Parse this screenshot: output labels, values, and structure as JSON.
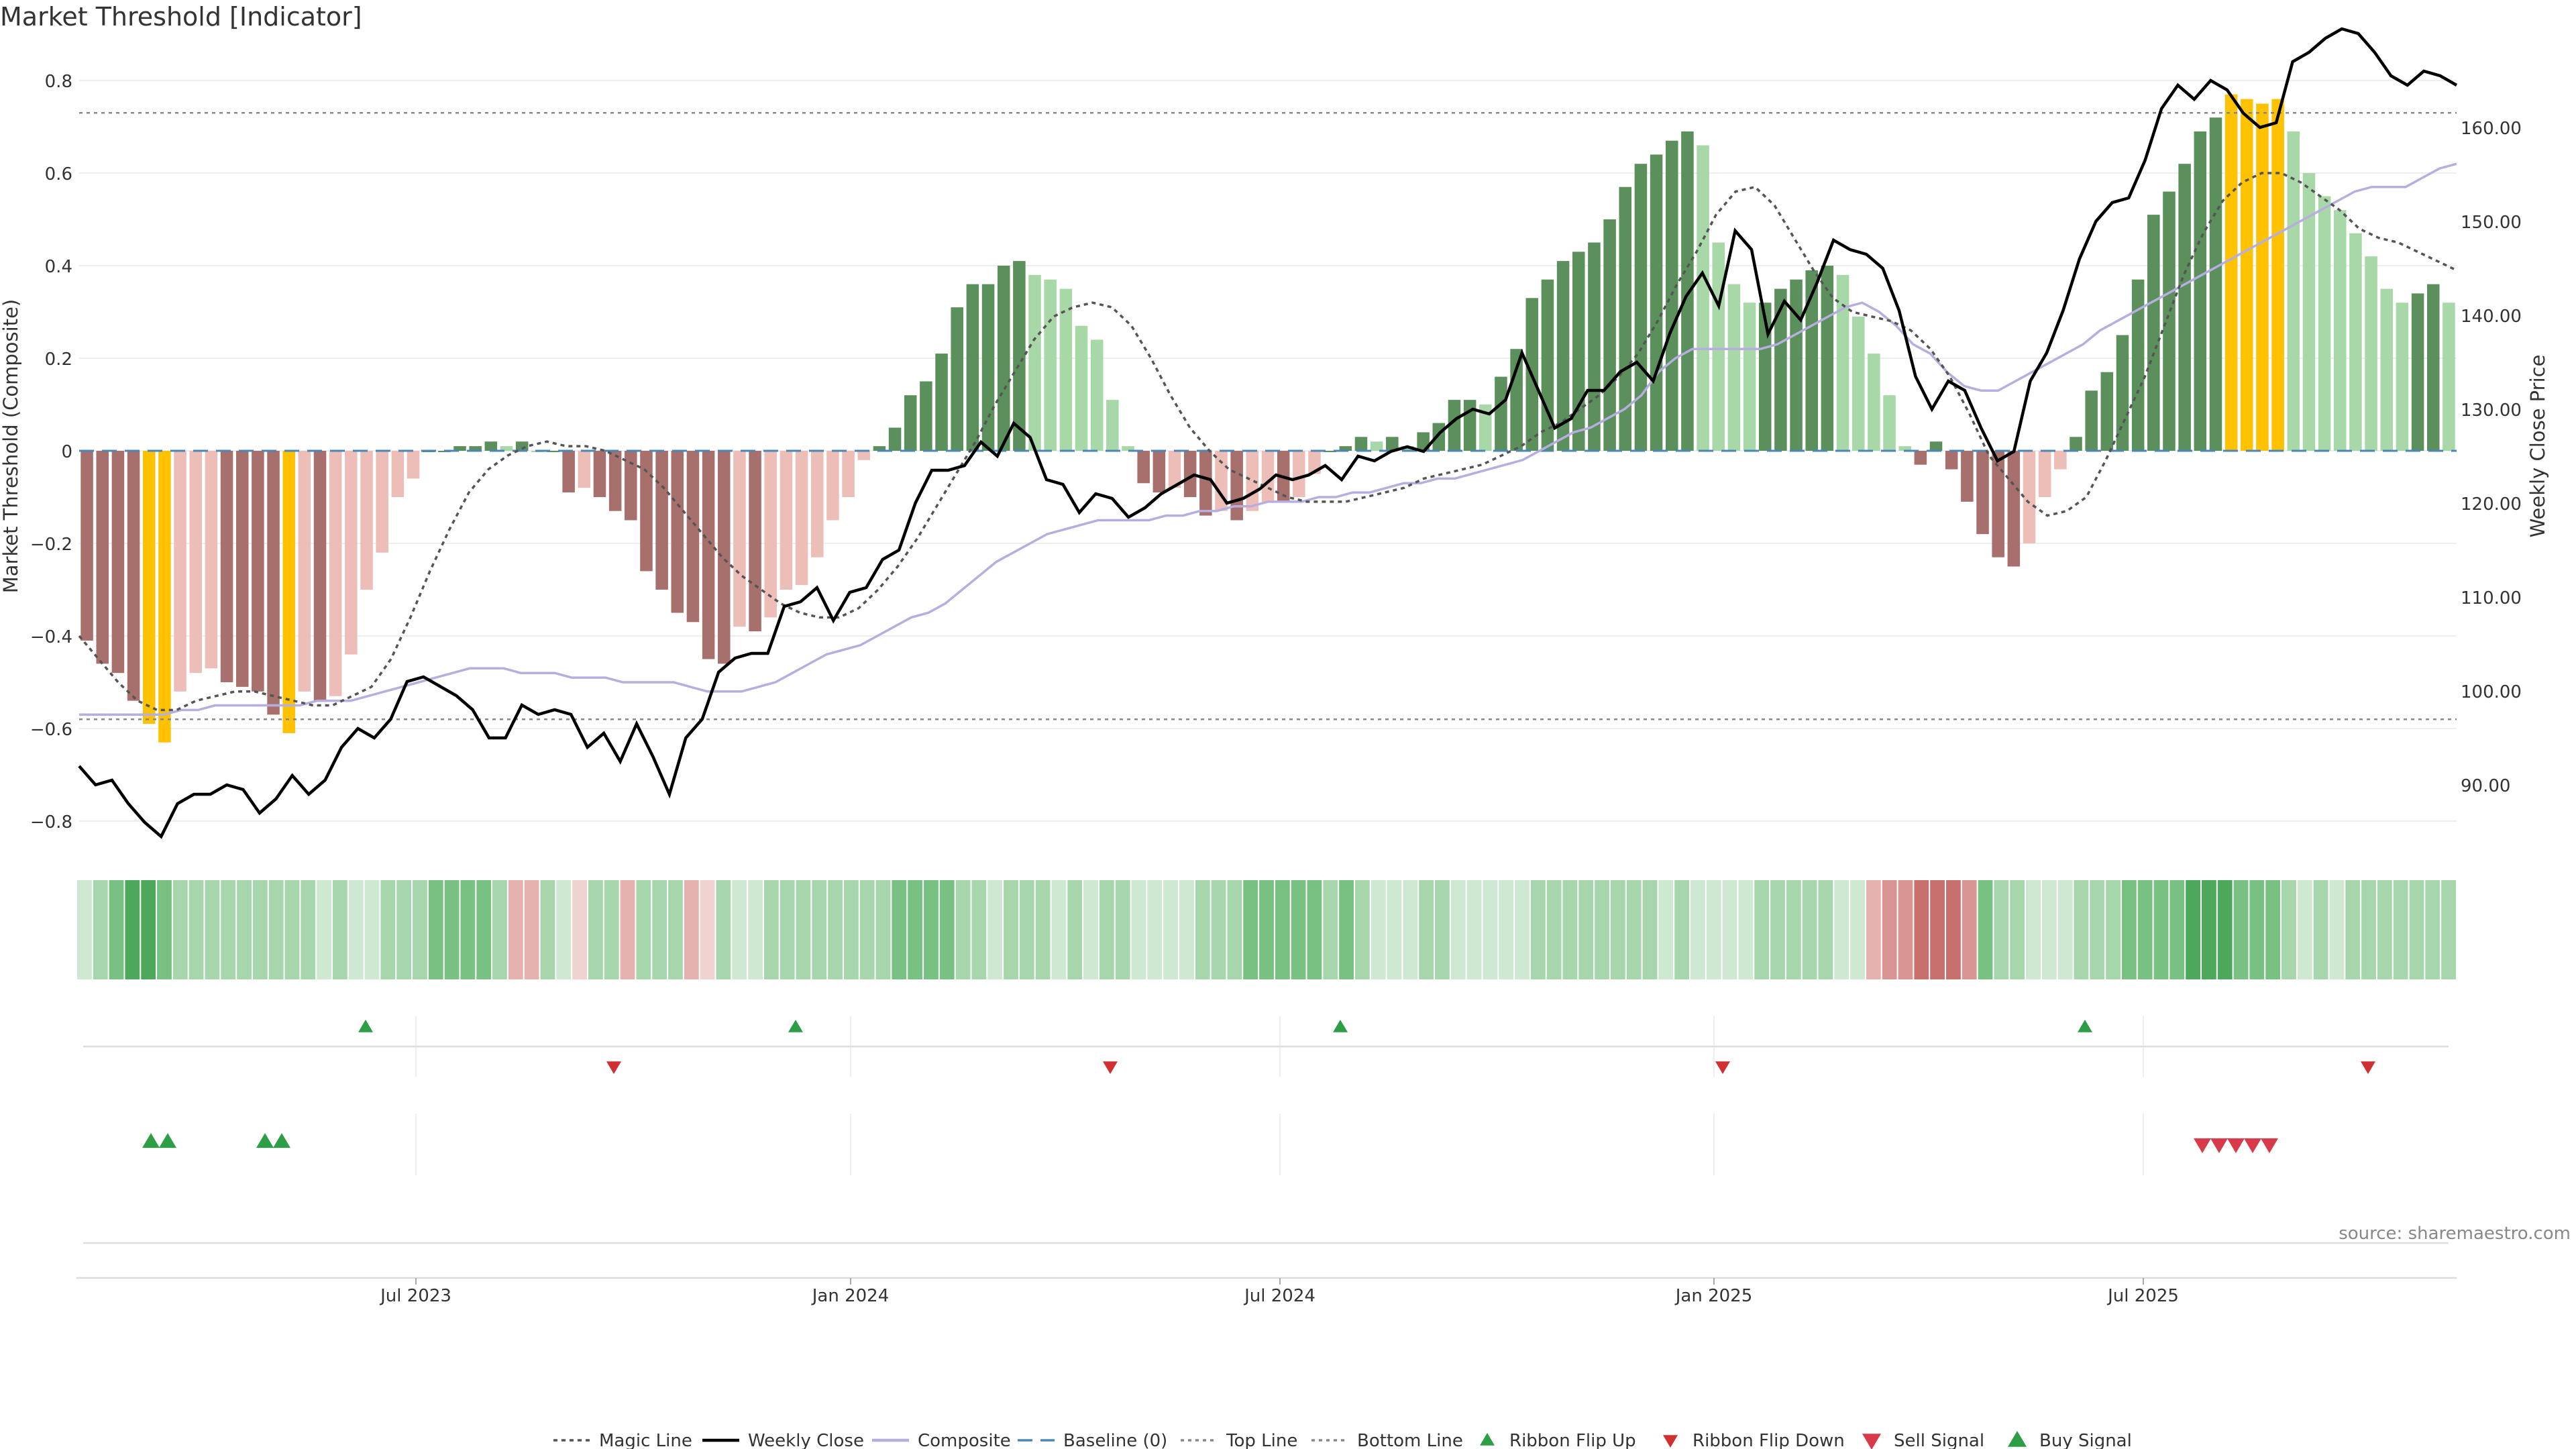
{
  "title": "Market Threshold [Indicator]",
  "source": "source: sharemaestro.com",
  "colors": {
    "bull_strong": "#5b8f5b",
    "bull_light": "#a8d8a8",
    "bear_strong": "#a8706c",
    "bear_light": "#edbdb8",
    "extreme": "#ffc200",
    "price_line": "#000000",
    "composite_line": "#b7aee0",
    "magic_line": "#555555",
    "threshold_line": "#888888",
    "baseline": "#4a86b8",
    "ribbon_green": "#3f9e4f",
    "ribbon_red": "#c86a6a",
    "flip_up": "#2e9e46",
    "flip_down": "#d03030",
    "sell": "#d83a4a",
    "buy": "#2e9e46"
  },
  "chart_data": {
    "type": "bar",
    "x_ticks": [
      "Jul 2023",
      "Jan 2024",
      "Jul 2024",
      "Jan 2025",
      "Jul 2025"
    ],
    "left_axis": {
      "label": "Market Threshold (Composite)",
      "ylim": [
        -0.85,
        0.85
      ],
      "ticks": [
        "0.8",
        "0.6",
        "0.4",
        "0.2",
        "0",
        "−0.2",
        "−0.4",
        "−0.6",
        "−0.8"
      ]
    },
    "right_axis": {
      "label": "Weekly Close Price",
      "ticks": [
        "160.00",
        "150.00",
        "140.00",
        "130.00",
        "120.00",
        "110.00",
        "100.00",
        "90.00"
      ]
    },
    "top_line": 0.73,
    "bottom_line": -0.58,
    "composite_bars": [
      -0.41,
      -0.46,
      -0.48,
      -0.54,
      -0.59,
      -0.63,
      -0.52,
      -0.48,
      -0.47,
      -0.5,
      -0.51,
      -0.52,
      -0.57,
      -0.61,
      -0.52,
      -0.54,
      -0.53,
      -0.44,
      -0.3,
      -0.22,
      -0.1,
      -0.06,
      0,
      0,
      0.01,
      0.01,
      0.02,
      0.01,
      0.02,
      0,
      0,
      -0.09,
      -0.08,
      -0.1,
      -0.13,
      -0.15,
      -0.26,
      -0.3,
      -0.35,
      -0.37,
      -0.45,
      -0.46,
      -0.38,
      -0.39,
      -0.36,
      -0.3,
      -0.29,
      -0.23,
      -0.15,
      -0.1,
      -0.02,
      0.01,
      0.05,
      0.12,
      0.15,
      0.21,
      0.31,
      0.36,
      0.36,
      0.4,
      0.41,
      0.38,
      0.37,
      0.35,
      0.27,
      0.24,
      0.11,
      0.01,
      -0.07,
      -0.09,
      -0.08,
      -0.1,
      -0.14,
      -0.13,
      -0.15,
      -0.13,
      -0.11,
      -0.11,
      -0.1,
      -0.05,
      0,
      0.01,
      0.03,
      0.02,
      0.03,
      0.01,
      0.04,
      0.06,
      0.11,
      0.11,
      0.1,
      0.16,
      0.22,
      0.33,
      0.37,
      0.41,
      0.43,
      0.45,
      0.5,
      0.57,
      0.62,
      0.64,
      0.67,
      0.69,
      0.66,
      0.45,
      0.36,
      0.32,
      0.32,
      0.35,
      0.37,
      0.39,
      0.4,
      0.38,
      0.29,
      0.21,
      0.12,
      0.01,
      -0.03,
      0.02,
      -0.04,
      -0.11,
      -0.18,
      -0.23,
      -0.25,
      -0.2,
      -0.1,
      -0.04,
      0.03,
      0.13,
      0.17,
      0.25,
      0.37,
      0.51,
      0.56,
      0.62,
      0.69,
      0.72,
      0.77,
      0.76,
      0.75,
      0.76,
      0.69,
      0.6,
      0.55,
      0.52,
      0.47,
      0.42,
      0.35,
      0.32,
      0.34,
      0.36,
      0.32
    ],
    "magic_line": [
      -0.4,
      -0.45,
      -0.5,
      -0.54,
      -0.56,
      -0.56,
      -0.54,
      -0.53,
      -0.52,
      -0.52,
      -0.53,
      -0.54,
      -0.55,
      -0.55,
      -0.53,
      -0.51,
      -0.45,
      -0.36,
      -0.26,
      -0.17,
      -0.09,
      -0.04,
      -0.01,
      0.01,
      0.02,
      0.01,
      0.01,
      0,
      -0.02,
      -0.04,
      -0.08,
      -0.13,
      -0.18,
      -0.23,
      -0.27,
      -0.3,
      -0.33,
      -0.35,
      -0.36,
      -0.36,
      -0.34,
      -0.3,
      -0.25,
      -0.19,
      -0.12,
      -0.05,
      0.02,
      0.1,
      0.17,
      0.24,
      0.29,
      0.31,
      0.32,
      0.31,
      0.27,
      0.2,
      0.12,
      0.05,
      0,
      -0.04,
      -0.06,
      -0.08,
      -0.1,
      -0.11,
      -0.11,
      -0.11,
      -0.1,
      -0.09,
      -0.08,
      -0.06,
      -0.05,
      -0.04,
      -0.03,
      -0.01,
      0.01,
      0.04,
      0.06,
      0.09,
      0.12,
      0.16,
      0.21,
      0.28,
      0.36,
      0.43,
      0.51,
      0.56,
      0.57,
      0.53,
      0.46,
      0.39,
      0.33,
      0.3,
      0.29,
      0.28,
      0.26,
      0.22,
      0.16,
      0.08,
      -0.01,
      -0.06,
      -0.11,
      -0.14,
      -0.13,
      -0.1,
      -0.02,
      0.07,
      0.16,
      0.27,
      0.38,
      0.47,
      0.54,
      0.58,
      0.6,
      0.6,
      0.58,
      0.55,
      0.52,
      0.48,
      0.46,
      0.45,
      0.43,
      0.41,
      0.39
    ],
    "composite_line": [
      -0.57,
      -0.57,
      -0.57,
      -0.57,
      -0.57,
      -0.57,
      -0.56,
      -0.56,
      -0.55,
      -0.55,
      -0.55,
      -0.55,
      -0.55,
      -0.55,
      -0.54,
      -0.54,
      -0.54,
      -0.53,
      -0.52,
      -0.51,
      -0.5,
      -0.49,
      -0.48,
      -0.47,
      -0.47,
      -0.47,
      -0.48,
      -0.48,
      -0.48,
      -0.49,
      -0.49,
      -0.49,
      -0.5,
      -0.5,
      -0.5,
      -0.5,
      -0.51,
      -0.52,
      -0.52,
      -0.52,
      -0.51,
      -0.5,
      -0.48,
      -0.46,
      -0.44,
      -0.43,
      -0.42,
      -0.4,
      -0.38,
      -0.36,
      -0.35,
      -0.33,
      -0.3,
      -0.27,
      -0.24,
      -0.22,
      -0.2,
      -0.18,
      -0.17,
      -0.16,
      -0.15,
      -0.15,
      -0.15,
      -0.15,
      -0.14,
      -0.14,
      -0.13,
      -0.13,
      -0.12,
      -0.12,
      -0.11,
      -0.11,
      -0.11,
      -0.1,
      -0.1,
      -0.09,
      -0.09,
      -0.08,
      -0.07,
      -0.07,
      -0.06,
      -0.06,
      -0.05,
      -0.04,
      -0.03,
      -0.02,
      0,
      0.02,
      0.04,
      0.05,
      0.07,
      0.09,
      0.12,
      0.17,
      0.2,
      0.22,
      0.22,
      0.22,
      0.22,
      0.22,
      0.23,
      0.25,
      0.27,
      0.29,
      0.31,
      0.32,
      0.3,
      0.27,
      0.23,
      0.21,
      0.17,
      0.14,
      0.13,
      0.13,
      0.15,
      0.17,
      0.19,
      0.21,
      0.23,
      0.26,
      0.28,
      0.3,
      0.32,
      0.34,
      0.36,
      0.38,
      0.4,
      0.42,
      0.44,
      0.46,
      0.48,
      0.5,
      0.52,
      0.54,
      0.56,
      0.57,
      0.57,
      0.57,
      0.59,
      0.61,
      0.62
    ],
    "weekly_close": [
      92,
      90,
      90.5,
      88,
      86,
      84.5,
      88,
      89,
      89,
      90,
      89.5,
      87,
      88.5,
      91,
      89,
      90.5,
      94,
      96,
      95,
      97,
      101,
      101.5,
      100.5,
      99.5,
      98,
      95,
      95,
      98.5,
      97.5,
      98,
      97.5,
      94,
      95.5,
      92.5,
      96.5,
      93,
      89,
      95,
      97,
      102,
      103.5,
      104,
      104,
      109,
      109.5,
      111,
      107.5,
      110.5,
      111,
      114,
      115,
      120,
      123.5,
      123.5,
      124,
      126.5,
      125,
      128.5,
      127,
      122.5,
      122,
      119,
      121,
      120.5,
      118.5,
      119.5,
      121,
      122,
      123,
      122.5,
      120,
      120.5,
      121.5,
      123,
      122.5,
      123,
      124,
      122.5,
      125,
      124.5,
      125.5,
      126,
      125.5,
      127.5,
      129,
      130,
      129.5,
      131,
      136,
      132,
      128,
      129,
      132,
      132,
      134,
      135,
      133,
      138,
      142,
      144.5,
      141,
      149,
      147,
      138,
      141.5,
      139.5,
      143.5,
      148,
      147,
      146.5,
      145,
      140.5,
      133.5,
      130,
      133,
      132,
      128,
      124.5,
      125.5,
      133,
      136,
      140.5,
      146,
      150,
      152,
      152.5,
      156.5,
      162,
      164.5,
      163,
      165,
      164,
      161.5,
      160,
      160.5,
      167,
      168,
      169.5,
      170.5,
      170,
      168,
      165.5,
      164.5,
      166,
      165.5,
      164.5
    ]
  },
  "ribbon": {
    "strength": [
      1,
      2,
      3,
      4,
      4,
      3,
      2,
      2,
      2,
      2,
      2,
      2,
      2,
      2,
      2,
      1,
      2,
      1,
      1,
      2,
      2,
      2,
      3,
      3,
      3,
      3,
      2,
      2,
      2,
      2,
      1,
      1,
      2,
      2,
      2,
      2,
      2,
      2,
      2,
      1,
      2,
      1,
      1,
      2,
      2,
      2,
      2,
      2,
      2,
      2,
      2,
      3,
      3,
      3,
      3,
      2,
      2,
      1,
      2,
      2,
      2,
      1,
      2,
      1,
      2,
      2,
      1,
      1,
      1,
      1,
      2,
      2,
      2,
      3,
      3,
      3,
      3,
      3,
      2,
      3,
      2,
      1,
      1,
      1,
      2,
      2,
      1,
      1,
      1,
      1,
      1,
      2,
      2,
      2,
      2,
      2,
      2,
      2,
      2,
      1,
      2,
      1,
      1,
      1,
      1,
      2,
      2,
      2,
      2,
      2,
      1,
      1,
      2,
      3,
      3,
      4,
      4,
      4,
      3,
      3,
      2,
      2,
      1,
      1,
      1,
      2,
      2,
      2,
      3,
      3,
      3,
      3,
      4,
      4,
      4,
      3,
      3,
      3,
      2,
      1,
      2,
      1,
      2,
      2,
      2,
      2,
      2,
      2,
      2
    ]
  },
  "signals": {
    "ribbon_flip_up_dates": [
      "2023-06",
      "2023-12",
      "2024-07",
      "2025-05"
    ],
    "ribbon_flip_down_dates": [
      "2023-09",
      "2024-05",
      "2024-12",
      "2025-10"
    ],
    "sell_signal_count": 5,
    "buy_signal_count": 4
  },
  "legend": {
    "items": [
      "Magic Line",
      "Weekly Close",
      "Composite",
      "Baseline (0)",
      "Top Line",
      "Bottom Line",
      "Ribbon Flip Up",
      "Ribbon Flip Down",
      "Sell Signal",
      "Buy Signal"
    ]
  }
}
